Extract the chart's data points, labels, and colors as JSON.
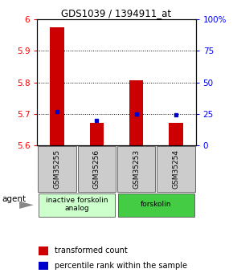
{
  "title": "GDS1039 / 1394911_at",
  "samples": [
    "GSM35255",
    "GSM35256",
    "GSM35253",
    "GSM35254"
  ],
  "bar_values": [
    5.975,
    5.672,
    5.807,
    5.672
  ],
  "bar_base": 5.6,
  "percentile_values": [
    27,
    20,
    25,
    24
  ],
  "percentile_scale_min": 0,
  "percentile_scale_max": 100,
  "y_min": 5.6,
  "y_max": 6.0,
  "y_ticks": [
    5.6,
    5.7,
    5.8,
    5.9,
    6.0
  ],
  "y_tick_labels": [
    "5.6",
    "5.7",
    "5.8",
    "5.9",
    "6"
  ],
  "y_ticks_right": [
    0,
    25,
    50,
    75,
    100
  ],
  "y_ticks_right_labels": [
    "0",
    "25",
    "50",
    "75",
    "100%"
  ],
  "dotted_lines": [
    5.7,
    5.8,
    5.9
  ],
  "bar_color": "#cc0000",
  "dot_color": "#0000cc",
  "groups": [
    {
      "label": "inactive forskolin\nanalog",
      "samples": [
        0,
        1
      ],
      "color": "#ccffcc"
    },
    {
      "label": "forskolin",
      "samples": [
        2,
        3
      ],
      "color": "#44cc44"
    }
  ],
  "agent_label": "agent",
  "legend_bar_label": "transformed count",
  "legend_dot_label": "percentile rank within the sample",
  "background_color": "#ffffff",
  "plot_bg_color": "#ffffff",
  "sample_box_color": "#cccccc",
  "bar_width": 0.35
}
